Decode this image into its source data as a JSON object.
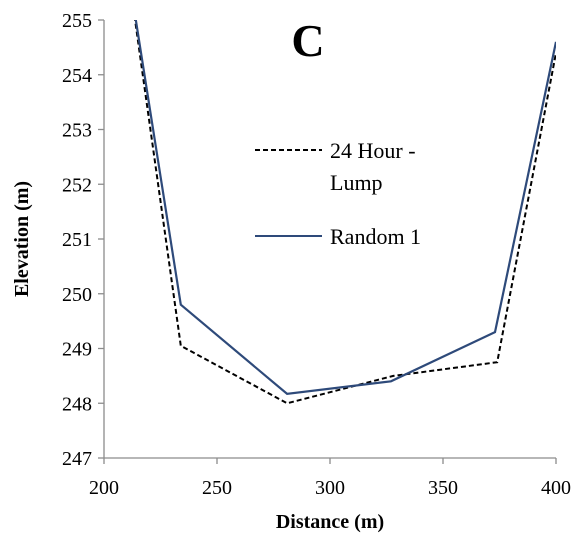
{
  "chart_data": {
    "type": "line",
    "panel_label": "C",
    "xlabel": "Distance (m)",
    "ylabel": "Elevation (m)",
    "xlim": [
      200,
      400
    ],
    "ylim": [
      247,
      255
    ],
    "xticks": [
      200,
      250,
      300,
      350,
      400
    ],
    "yticks": [
      247,
      248,
      249,
      250,
      251,
      252,
      253,
      254,
      255
    ],
    "grid": false,
    "legend_position": "center",
    "series": [
      {
        "name_lines": [
          "24 Hour -",
          "Lump"
        ],
        "style": "dashed",
        "color": "#000000",
        "x": [
          211,
          234,
          281,
          328,
          374,
          400
        ],
        "y": [
          255.8,
          249.05,
          248.0,
          248.5,
          248.75,
          254.4
        ]
      },
      {
        "name_lines": [
          "Random 1"
        ],
        "style": "solid",
        "color": "#2e4a7a",
        "x": [
          211,
          234,
          281,
          327,
          373,
          400
        ],
        "y": [
          255.8,
          249.8,
          248.17,
          248.4,
          249.3,
          254.6
        ]
      }
    ]
  }
}
